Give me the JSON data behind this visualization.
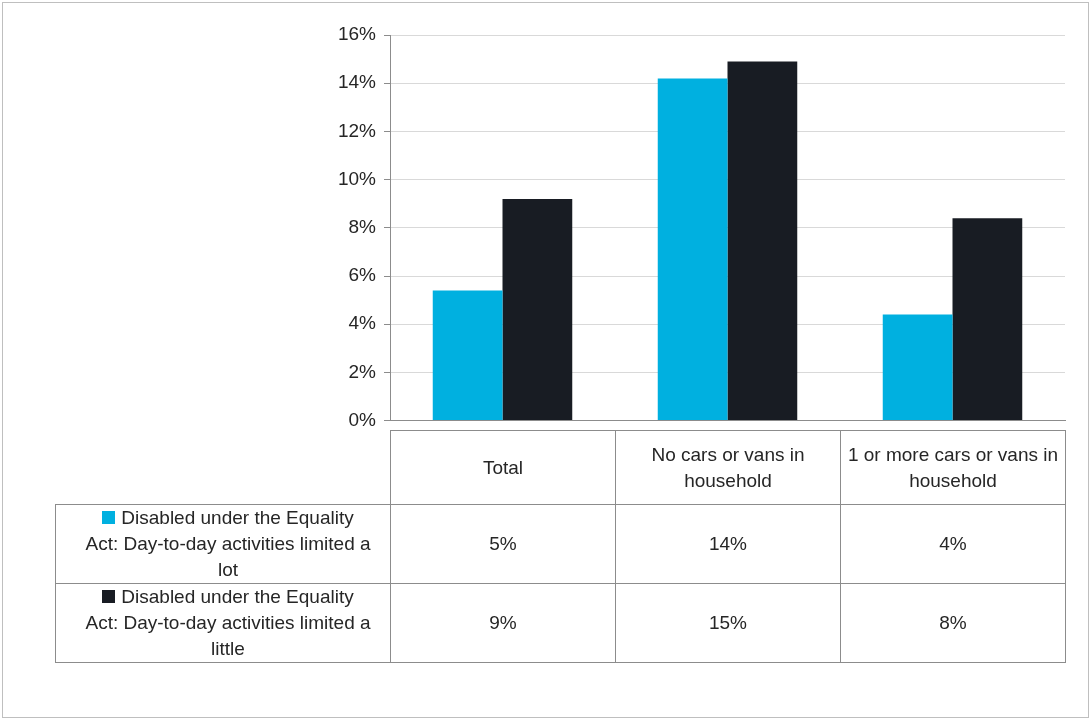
{
  "chart_data": {
    "type": "bar",
    "categories": [
      "Total",
      "No cars or vans in household",
      "1 or more cars or vans in household"
    ],
    "series": [
      {
        "name": "Disabled under the Equality Act: Day-to-day activities limited a lot",
        "color": "#00b0e0",
        "values": [
          5.4,
          14.2,
          4.4
        ],
        "value_labels": [
          "5%",
          "14%",
          "4%"
        ]
      },
      {
        "name": "Disabled under the Equality Act: Day-to-day activities limited a little",
        "color": "#181c23",
        "values": [
          9.2,
          14.9,
          8.4
        ],
        "value_labels": [
          "9%",
          "15%",
          "8%"
        ]
      }
    ],
    "ylim": [
      0,
      16
    ],
    "yticks": [
      {
        "value": 0,
        "label": "0%"
      },
      {
        "value": 2,
        "label": "2%"
      },
      {
        "value": 4,
        "label": "4%"
      },
      {
        "value": 6,
        "label": "6%"
      },
      {
        "value": 8,
        "label": "8%"
      },
      {
        "value": 10,
        "label": "10%"
      },
      {
        "value": 12,
        "label": "12%"
      },
      {
        "value": 14,
        "label": "14%"
      },
      {
        "value": 16,
        "label": "16%"
      }
    ],
    "grid": "y",
    "legend": "bottom"
  }
}
